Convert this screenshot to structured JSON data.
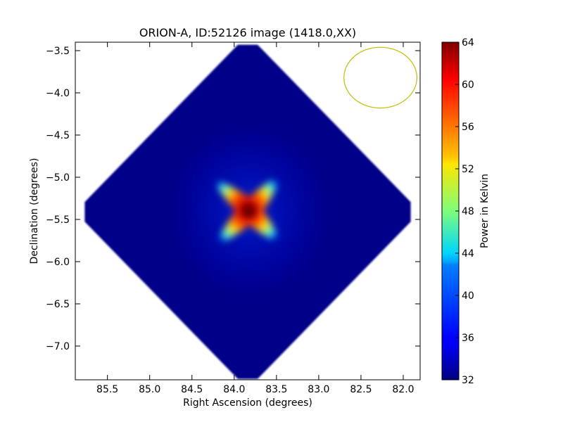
{
  "chart_data": {
    "type": "heatmap",
    "title": "ORION-A, ID:52126 image (1418.0,XX)",
    "xlabel": "Right Ascension (degrees)",
    "ylabel": "Declination (degrees)",
    "xlim": [
      85.88,
      81.8
    ],
    "ylim": [
      -7.4,
      -3.4
    ],
    "x_ticks": [
      85.5,
      85.0,
      84.5,
      84.0,
      83.5,
      83.0,
      82.5,
      82.0
    ],
    "x_tick_labels": [
      "85.5",
      "85.0",
      "84.5",
      "84.0",
      "83.5",
      "83.0",
      "82.5",
      "82.0"
    ],
    "y_ticks": [
      -3.5,
      -4.0,
      -4.5,
      -5.0,
      -5.5,
      -6.0,
      -6.5,
      -7.0
    ],
    "y_tick_labels": [
      "−3.5",
      "−4.0",
      "−4.5",
      "−5.0",
      "−5.5",
      "−6.0",
      "−6.5",
      "−7.0"
    ],
    "map": {
      "center_ra": 83.84,
      "center_dec": -5.41,
      "footprint_shape": "diamond",
      "footprint_half_diagonal_dec": 1.98,
      "background_value": 32.5,
      "peak_value": 64,
      "peak_ra": 83.82,
      "peak_dec": -5.4
    },
    "beam": {
      "center_ra": 82.27,
      "center_dec": -3.82,
      "radius_dec": 0.36,
      "color": "#bfbf00"
    },
    "colorbar": {
      "label": "Power in Kelvin",
      "range": [
        32,
        64
      ],
      "ticks": [
        32,
        36,
        40,
        44,
        48,
        52,
        56,
        60,
        64
      ],
      "tick_labels": [
        "32",
        "36",
        "40",
        "44",
        "48",
        "52",
        "56",
        "60",
        "64"
      ],
      "colormap": "jet"
    }
  }
}
